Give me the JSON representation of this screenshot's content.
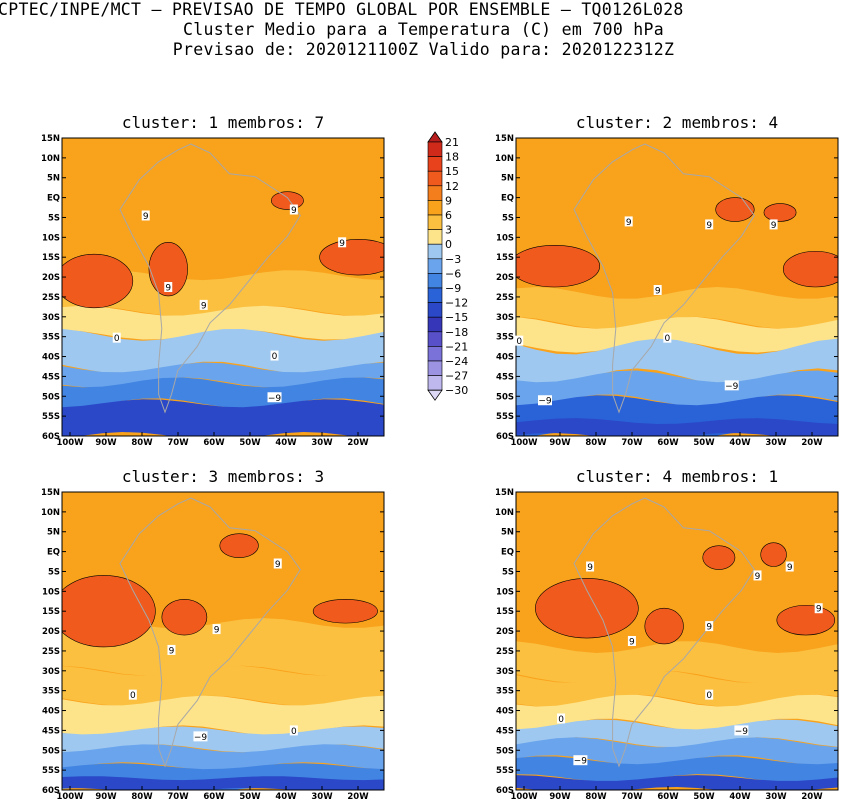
{
  "header": {
    "line1": "CPTEC/INPE/MCT – PREVISAO DE TEMPO GLOBAL POR ENSEMBLE – TQ0126L028",
    "line2": "Cluster Medio para a Temperatura (C) em 700 hPa",
    "line3": "Previsao de: 2020121100Z    Valido para: 2020122312Z"
  },
  "panels": [
    {
      "title": "cluster: 1   membros: 7"
    },
    {
      "title": "cluster: 2   membros: 4"
    },
    {
      "title": "cluster: 3   membros: 3"
    },
    {
      "title": "cluster: 4   membros: 1"
    }
  ],
  "lat_ticks": [
    "15N",
    "10N",
    "5N",
    "EQ",
    "5S",
    "10S",
    "15S",
    "20S",
    "25S",
    "30S",
    "35S",
    "40S",
    "45S",
    "50S",
    "55S",
    "60S"
  ],
  "lon_ticks": [
    "100W",
    "90W",
    "80W",
    "70W",
    "60W",
    "50W",
    "40W",
    "30W",
    "20W"
  ],
  "colorbar": {
    "labels": [
      "21",
      "18",
      "15",
      "12",
      "9",
      "6",
      "3",
      "0",
      "−3",
      "−6",
      "−9",
      "−12",
      "−15",
      "−18",
      "−21",
      "−24",
      "−27",
      "−30"
    ],
    "colors": [
      "#b81e1e",
      "#d02a1a",
      "#e8421c",
      "#f05a1c",
      "#f57e1c",
      "#f9a21c",
      "#fbc040",
      "#fde48a",
      "#9ec8f0",
      "#6aa4ec",
      "#4284e2",
      "#2a62d8",
      "#2a48c8",
      "#3636b8",
      "#5850c8",
      "#7a72d8",
      "#9c94e2",
      "#beb8ee",
      "#dcd8f6"
    ]
  },
  "contour_labels": {
    "panel1": [
      "9",
      "9",
      "9",
      "9",
      "9",
      "0",
      "0",
      "−9"
    ],
    "panel2": [
      "9",
      "9",
      "9",
      "9",
      "0",
      "0",
      "−9",
      "−9"
    ],
    "panel3": [
      "9",
      "9",
      "9",
      "0",
      "0",
      "−9"
    ],
    "panel4": [
      "9",
      "9",
      "9",
      "9",
      "9",
      "9",
      "0",
      "0",
      "−9",
      "−9"
    ]
  }
}
